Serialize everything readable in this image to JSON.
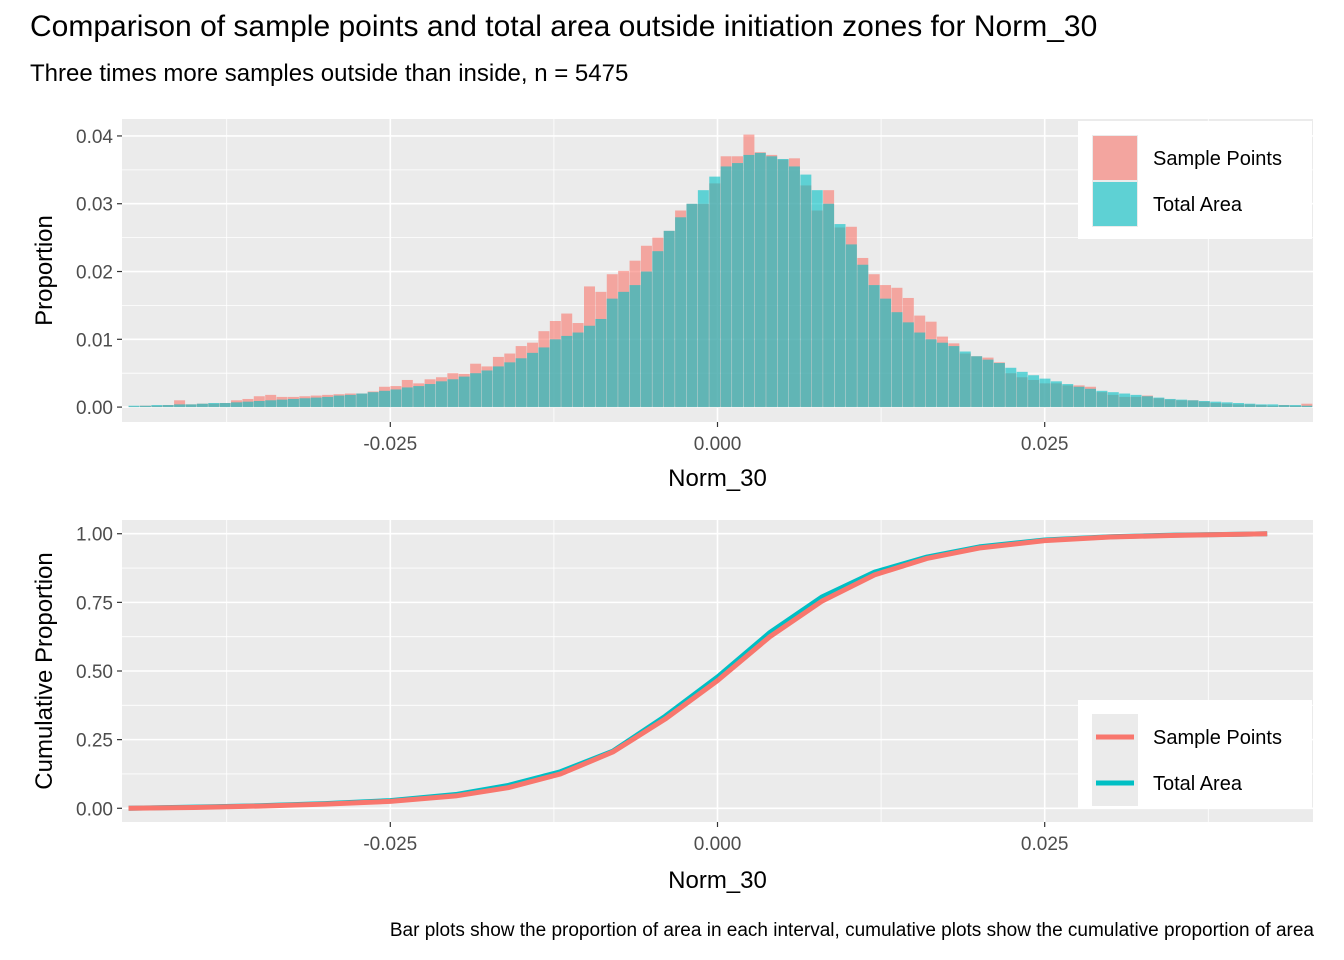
{
  "title": "Comparison of sample points and total area outside initiation zones for Norm_30",
  "subtitle": "Three times more samples outside than inside, n = 5475",
  "caption": "Bar plots show the proportion of area in each interval, cumulative plots show the cumulative proportion of area",
  "colors": {
    "sample": "#F8766D",
    "total": "#00BFC4",
    "panel": "#EBEBEB",
    "grid": "#FFFFFF"
  },
  "chart_data": [
    {
      "type": "bar",
      "xlabel": "Norm_30",
      "ylabel": "Proportion",
      "xlim": [
        -0.0455,
        0.0455
      ],
      "ylim": [
        -0.0022,
        0.0425
      ],
      "xticks": [
        -0.025,
        0.0,
        0.025
      ],
      "xtick_labels": [
        "-0.025",
        "0.000",
        "0.025"
      ],
      "yticks": [
        0.0,
        0.01,
        0.02,
        0.03,
        0.04
      ],
      "ytick_labels": [
        "0.00",
        "0.01",
        "0.02",
        "0.03",
        "0.04"
      ],
      "grid": true,
      "legend": "top-right",
      "bin_start": -0.045,
      "bin_width": 0.00087,
      "series": [
        {
          "name": "Sample Points",
          "values": [
            0.0001,
            0.0002,
            0.0002,
            0.0003,
            0.001,
            0.0004,
            0.0005,
            0.0005,
            0.0006,
            0.001,
            0.0012,
            0.0016,
            0.0018,
            0.0015,
            0.0015,
            0.0016,
            0.0017,
            0.0018,
            0.0019,
            0.002,
            0.002,
            0.0023,
            0.003,
            0.0031,
            0.004,
            0.0035,
            0.0041,
            0.0044,
            0.005,
            0.0049,
            0.0064,
            0.006,
            0.0074,
            0.0079,
            0.009,
            0.0095,
            0.0112,
            0.0127,
            0.0138,
            0.0124,
            0.0178,
            0.017,
            0.0196,
            0.0201,
            0.0216,
            0.0238,
            0.025,
            0.026,
            0.029,
            0.03,
            0.03,
            0.033,
            0.037,
            0.037,
            0.0402,
            0.0376,
            0.0372,
            0.0365,
            0.0367,
            0.0327,
            0.029,
            0.032,
            0.0265,
            0.0266,
            0.022,
            0.0196,
            0.018,
            0.0176,
            0.0161,
            0.0135,
            0.0126,
            0.0104,
            0.0094,
            0.0079,
            0.0075,
            0.0073,
            0.0066,
            0.005,
            0.0044,
            0.004,
            0.0035,
            0.0035,
            0.0032,
            0.0032,
            0.003,
            0.0022,
            0.0018,
            0.0015,
            0.0015,
            0.0017,
            0.0013,
            0.0011,
            0.001,
            0.001,
            0.0008,
            0.0006,
            0.0005,
            0.0004,
            0.0004,
            0.0003,
            0.0002,
            0.0003,
            0.0002,
            0.0005
          ],
          "_note": "read off bars"
        },
        {
          "name": "Total Area",
          "values": [
            0.0002,
            0.0002,
            0.0003,
            0.0003,
            0.0004,
            0.0004,
            0.0005,
            0.0006,
            0.0006,
            0.0007,
            0.0008,
            0.0009,
            0.001,
            0.0011,
            0.0012,
            0.0013,
            0.0014,
            0.0015,
            0.0017,
            0.0018,
            0.002,
            0.0022,
            0.0024,
            0.0026,
            0.0029,
            0.0031,
            0.0034,
            0.0038,
            0.0041,
            0.0045,
            0.005,
            0.0054,
            0.006,
            0.0066,
            0.0072,
            0.008,
            0.0088,
            0.01,
            0.0105,
            0.011,
            0.012,
            0.013,
            0.016,
            0.017,
            0.018,
            0.02,
            0.023,
            0.026,
            0.028,
            0.03,
            0.032,
            0.034,
            0.0355,
            0.036,
            0.0372,
            0.0375,
            0.037,
            0.0366,
            0.0355,
            0.0343,
            0.032,
            0.03,
            0.027,
            0.024,
            0.021,
            0.018,
            0.016,
            0.014,
            0.0125,
            0.011,
            0.01,
            0.0095,
            0.009,
            0.0082,
            0.0075,
            0.007,
            0.0065,
            0.0058,
            0.0052,
            0.0047,
            0.0042,
            0.0038,
            0.0034,
            0.003,
            0.0027,
            0.0024,
            0.0022,
            0.002,
            0.0018,
            0.0016,
            0.0014,
            0.0012,
            0.0011,
            0.001,
            0.0009,
            0.0008,
            0.0007,
            0.0006,
            0.0005,
            0.0004,
            0.0004,
            0.0003,
            0.0003,
            0.0002
          ]
        }
      ]
    },
    {
      "type": "line",
      "xlabel": "Norm_30",
      "ylabel": "Cumulative Proportion",
      "xlim": [
        -0.0455,
        0.0455
      ],
      "ylim": [
        -0.05,
        1.05
      ],
      "xticks": [
        -0.025,
        0.0,
        0.025
      ],
      "xtick_labels": [
        "-0.025",
        "0.000",
        "0.025"
      ],
      "yticks": [
        0.0,
        0.25,
        0.5,
        0.75,
        1.0
      ],
      "ytick_labels": [
        "0.00",
        "0.25",
        "0.50",
        "0.75",
        "1.00"
      ],
      "grid": true,
      "legend": "bottom-right",
      "series": [
        {
          "name": "Sample Points",
          "x": [
            -0.045,
            -0.04,
            -0.035,
            -0.03,
            -0.025,
            -0.02,
            -0.016,
            -0.012,
            -0.008,
            -0.004,
            0.0,
            0.004,
            0.008,
            0.012,
            0.016,
            0.02,
            0.025,
            0.03,
            0.035,
            0.04,
            0.042
          ],
          "y": [
            0.0,
            0.003,
            0.008,
            0.015,
            0.025,
            0.045,
            0.075,
            0.125,
            0.205,
            0.325,
            0.465,
            0.625,
            0.755,
            0.85,
            0.91,
            0.948,
            0.975,
            0.988,
            0.994,
            0.998,
            1.0
          ]
        },
        {
          "name": "Total Area",
          "x": [
            -0.045,
            -0.04,
            -0.035,
            -0.03,
            -0.025,
            -0.02,
            -0.016,
            -0.012,
            -0.008,
            -0.004,
            0.0,
            0.004,
            0.008,
            0.012,
            0.016,
            0.02,
            0.025,
            0.03,
            0.035,
            0.04,
            0.042
          ],
          "y": [
            0.0,
            0.004,
            0.009,
            0.017,
            0.028,
            0.05,
            0.083,
            0.133,
            0.208,
            0.335,
            0.478,
            0.64,
            0.77,
            0.86,
            0.915,
            0.952,
            0.977,
            0.989,
            0.995,
            0.998,
            1.0
          ]
        }
      ]
    }
  ]
}
